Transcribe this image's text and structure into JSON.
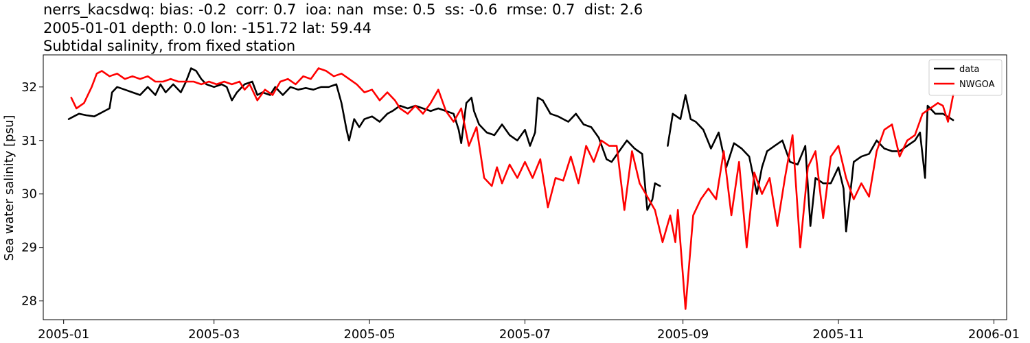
{
  "chart_data": {
    "type": "line",
    "title_lines": [
      "nerrs_kacsdwq: bias: -0.2  corr: 0.7  ioa: nan  mse: 0.5  ss: -0.6  rmse: 0.7  dist: 2.6",
      "2005-01-01 depth: 0.0 lon: -151.72 lat: 59.44",
      "Subtidal salinity, from fixed station"
    ],
    "xlabel": "",
    "ylabel": "Sea water salinity [psu]",
    "xlim": [
      "2004-12-24",
      "2006-01-06"
    ],
    "ylim": [
      27.65,
      32.6
    ],
    "x_ticks": [
      "2005-01",
      "2005-03",
      "2005-05",
      "2005-07",
      "2005-09",
      "2005-11",
      "2006-01"
    ],
    "y_ticks": [
      28,
      29,
      30,
      31,
      32
    ],
    "grid": false,
    "legend_position": "top-right",
    "series": [
      {
        "name": "data",
        "color": "#000000",
        "x": [
          "2005-01-03",
          "2005-01-05",
          "2005-01-07",
          "2005-01-10",
          "2005-01-13",
          "2005-01-15",
          "2005-01-17",
          "2005-01-19",
          "2005-01-20",
          "2005-01-22",
          "2005-01-25",
          "2005-01-28",
          "2005-01-31",
          "2005-02-03",
          "2005-02-06",
          "2005-02-08",
          "2005-02-10",
          "2005-02-13",
          "2005-02-16",
          "2005-02-18",
          "2005-02-20",
          "2005-02-22",
          "2005-02-24",
          "2005-02-26",
          "2005-03-01",
          "2005-03-04",
          "2005-03-06",
          "2005-03-08",
          "2005-03-10",
          "2005-03-13",
          "2005-03-16",
          "2005-03-18",
          "2005-03-20",
          "2005-03-23",
          "2005-03-25",
          "2005-03-28",
          "2005-03-31",
          "2005-04-03",
          "2005-04-06",
          "2005-04-09",
          "2005-04-12",
          "2005-04-15",
          "2005-04-18",
          "2005-04-20",
          "2005-04-22",
          "2005-04-23",
          "2005-04-25",
          "2005-04-27",
          "2005-04-29",
          "2005-05-02",
          "2005-05-05",
          "2005-05-08",
          "2005-05-10",
          "2005-05-13",
          "2005-05-16",
          "2005-05-19",
          "2005-05-22",
          "2005-05-25",
          "2005-05-28",
          "2005-05-31",
          "2005-06-03",
          "2005-06-05",
          "2005-06-06",
          "2005-06-08",
          "2005-06-10",
          "2005-06-11",
          "2005-06-13",
          "2005-06-16",
          "2005-06-19",
          "2005-06-22",
          "2005-06-25",
          "2005-06-28",
          "2005-07-01",
          "2005-07-03",
          "2005-07-05",
          "2005-07-06",
          "2005-07-08",
          "2005-07-11",
          "2005-07-14",
          "2005-07-16",
          "2005-07-18",
          "2005-07-21",
          "2005-07-24",
          "2005-07-27",
          "2005-07-30",
          "2005-08-02",
          "2005-08-04",
          "2005-08-07",
          "2005-08-10",
          "2005-08-13",
          "2005-08-16",
          "2005-08-18",
          "2005-08-20",
          "2005-08-21",
          "2005-08-23"
        ],
        "values": [
          31.4,
          31.45,
          31.5,
          31.47,
          31.45,
          31.5,
          31.55,
          31.6,
          31.9,
          32.0,
          31.95,
          31.9,
          31.85,
          32.0,
          31.85,
          32.05,
          31.9,
          32.05,
          31.9,
          32.1,
          32.35,
          32.3,
          32.15,
          32.05,
          32.0,
          32.05,
          32.0,
          31.75,
          31.9,
          32.05,
          32.1,
          31.85,
          31.9,
          31.85,
          32.0,
          31.85,
          32.0,
          31.95,
          31.98,
          31.95,
          32.0,
          32.0,
          32.05,
          31.7,
          31.2,
          31.0,
          31.4,
          31.25,
          31.4,
          31.45,
          31.35,
          31.5,
          31.55,
          31.65,
          31.6,
          31.65,
          31.6,
          31.55,
          31.6,
          31.55,
          31.5,
          31.2,
          30.95,
          31.7,
          31.8,
          31.55,
          31.3,
          31.15,
          31.1,
          31.3,
          31.1,
          31.0,
          31.2,
          30.9,
          31.15,
          31.8,
          31.75,
          31.5,
          31.45,
          31.4,
          31.35,
          31.5,
          31.3,
          31.25,
          31.05,
          30.65,
          30.6,
          30.8,
          31.0,
          30.85,
          30.75,
          29.7,
          29.9,
          30.2,
          30.15
        ]
      },
      {
        "name": "data",
        "color": "#000000",
        "x": [
          "2005-08-26",
          "2005-08-28",
          "2005-08-31",
          "2005-09-02",
          "2005-09-04",
          "2005-09-06",
          "2005-09-09",
          "2005-09-12",
          "2005-09-15",
          "2005-09-18",
          "2005-09-21",
          "2005-09-24",
          "2005-09-27",
          "2005-09-30",
          "2005-10-02",
          "2005-10-04",
          "2005-10-07",
          "2005-10-10",
          "2005-10-13",
          "2005-10-16",
          "2005-10-19",
          "2005-10-21",
          "2005-10-23",
          "2005-10-26",
          "2005-10-29",
          "2005-11-01",
          "2005-11-03",
          "2005-11-04",
          "2005-11-07",
          "2005-11-10",
          "2005-11-13",
          "2005-11-16",
          "2005-11-19",
          "2005-11-22",
          "2005-11-25",
          "2005-11-28",
          "2005-12-01",
          "2005-12-03",
          "2005-12-05",
          "2005-12-06",
          "2005-12-09",
          "2005-12-12",
          "2005-12-16"
        ],
        "values": [
          30.9,
          31.5,
          31.4,
          31.85,
          31.4,
          31.35,
          31.2,
          30.85,
          31.15,
          30.5,
          30.95,
          30.85,
          30.7,
          30.0,
          30.5,
          30.8,
          30.9,
          31.0,
          30.6,
          30.55,
          30.9,
          29.4,
          30.3,
          30.2,
          30.2,
          30.5,
          30.1,
          29.3,
          30.6,
          30.7,
          30.75,
          31.0,
          30.85,
          30.8,
          30.8,
          30.9,
          31.0,
          31.15,
          30.3,
          31.65,
          31.5,
          31.5,
          31.38
        ]
      },
      {
        "name": "NWGOA",
        "color": "#ff0000",
        "x": [
          "2005-01-04",
          "2005-01-06",
          "2005-01-09",
          "2005-01-12",
          "2005-01-14",
          "2005-01-16",
          "2005-01-19",
          "2005-01-22",
          "2005-01-25",
          "2005-01-28",
          "2005-01-31",
          "2005-02-03",
          "2005-02-06",
          "2005-02-09",
          "2005-02-12",
          "2005-02-15",
          "2005-02-18",
          "2005-02-21",
          "2005-02-24",
          "2005-02-27",
          "2005-03-02",
          "2005-03-05",
          "2005-03-08",
          "2005-03-11",
          "2005-03-13",
          "2005-03-15",
          "2005-03-18",
          "2005-03-21",
          "2005-03-24",
          "2005-03-27",
          "2005-03-30",
          "2005-04-02",
          "2005-04-05",
          "2005-04-08",
          "2005-04-11",
          "2005-04-14",
          "2005-04-17",
          "2005-04-20",
          "2005-04-23",
          "2005-04-26",
          "2005-04-29",
          "2005-05-02",
          "2005-05-05",
          "2005-05-08",
          "2005-05-11",
          "2005-05-13",
          "2005-05-16",
          "2005-05-19",
          "2005-05-22",
          "2005-05-25",
          "2005-05-28",
          "2005-05-31",
          "2005-06-03",
          "2005-06-06",
          "2005-06-09",
          "2005-06-12",
          "2005-06-15",
          "2005-06-18",
          "2005-06-20",
          "2005-06-22",
          "2005-06-25",
          "2005-06-28",
          "2005-07-01",
          "2005-07-04",
          "2005-07-07",
          "2005-07-10",
          "2005-07-13",
          "2005-07-16",
          "2005-07-19",
          "2005-07-22",
          "2005-07-25",
          "2005-07-28",
          "2005-07-31",
          "2005-08-03",
          "2005-08-06",
          "2005-08-09",
          "2005-08-12",
          "2005-08-15",
          "2005-08-18",
          "2005-08-21",
          "2005-08-24",
          "2005-08-27",
          "2005-08-29",
          "2005-08-30",
          "2005-09-02",
          "2005-09-05",
          "2005-09-08",
          "2005-09-11",
          "2005-09-14",
          "2005-09-17",
          "2005-09-20",
          "2005-09-23",
          "2005-09-26",
          "2005-09-29",
          "2005-10-02",
          "2005-10-05",
          "2005-10-08",
          "2005-10-11",
          "2005-10-14",
          "2005-10-17",
          "2005-10-20",
          "2005-10-23",
          "2005-10-26",
          "2005-10-29",
          "2005-11-01",
          "2005-11-04",
          "2005-11-07",
          "2005-11-10",
          "2005-11-13",
          "2005-11-16",
          "2005-11-19",
          "2005-11-22",
          "2005-11-25",
          "2005-11-28",
          "2005-12-01",
          "2005-12-04",
          "2005-12-07",
          "2005-12-10",
          "2005-12-12",
          "2005-12-14",
          "2005-12-16"
        ],
        "values": [
          31.8,
          31.6,
          31.7,
          32.0,
          32.25,
          32.3,
          32.2,
          32.25,
          32.15,
          32.2,
          32.15,
          32.2,
          32.1,
          32.1,
          32.15,
          32.1,
          32.1,
          32.1,
          32.05,
          32.1,
          32.05,
          32.1,
          32.05,
          32.1,
          31.95,
          32.05,
          31.75,
          31.95,
          31.85,
          32.1,
          32.15,
          32.05,
          32.2,
          32.15,
          32.35,
          32.3,
          32.2,
          32.25,
          32.15,
          32.05,
          31.9,
          31.95,
          31.75,
          31.9,
          31.75,
          31.6,
          31.5,
          31.65,
          31.5,
          31.7,
          31.95,
          31.55,
          31.35,
          31.6,
          30.9,
          31.25,
          30.3,
          30.15,
          30.5,
          30.2,
          30.55,
          30.3,
          30.6,
          30.3,
          30.65,
          29.75,
          30.3,
          30.25,
          30.7,
          30.2,
          30.9,
          30.6,
          31.0,
          30.9,
          30.9,
          29.7,
          30.8,
          30.2,
          29.95,
          29.7,
          29.1,
          29.6,
          29.1,
          29.7,
          27.85,
          29.6,
          29.9,
          30.1,
          29.9,
          30.8,
          29.6,
          30.6,
          29.0,
          30.4,
          30.0,
          30.3,
          29.4,
          30.3,
          31.1,
          29.0,
          30.5,
          30.8,
          29.55,
          30.7,
          30.9,
          30.3,
          29.9,
          30.2,
          29.95,
          30.8,
          31.2,
          31.3,
          30.7,
          31.0,
          31.1,
          31.5,
          31.6,
          31.7,
          31.65,
          31.35,
          31.85
        ]
      }
    ]
  }
}
